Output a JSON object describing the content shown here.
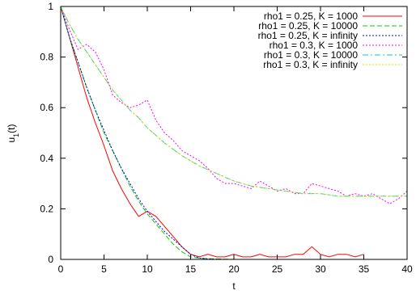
{
  "chart_data": {
    "type": "line",
    "xlabel": "t",
    "ylabel_main": "u",
    "ylabel_sub": "1",
    "ylabel_tail": "(t)",
    "xlim": [
      0,
      40
    ],
    "ylim": [
      0,
      1
    ],
    "x_ticks": [
      0,
      5,
      10,
      15,
      20,
      25,
      30,
      35,
      40
    ],
    "y_ticks": [
      0,
      0.2,
      0.4,
      0.6,
      0.8,
      1
    ],
    "y_tick_labels": [
      "0",
      "0.2",
      "0.4",
      "0.6",
      "0.8",
      "1"
    ],
    "grid": false,
    "legend_position": "top-right",
    "series": [
      {
        "name": "rho1 = 0.25, K = 1000",
        "color": "#ff0000",
        "style": "solid",
        "x": [
          0,
          1,
          2,
          3,
          4,
          5,
          6,
          7,
          8,
          9,
          10,
          11,
          12,
          13,
          14,
          15,
          16,
          17,
          18,
          19,
          20,
          21,
          22,
          23,
          24,
          25,
          26,
          27,
          28,
          29,
          30,
          31,
          32,
          33,
          34,
          35
        ],
        "y": [
          1.0,
          0.88,
          0.76,
          0.64,
          0.54,
          0.45,
          0.35,
          0.28,
          0.22,
          0.17,
          0.19,
          0.17,
          0.13,
          0.09,
          0.05,
          0.02,
          0.01,
          0.02,
          0.01,
          0.01,
          0.02,
          0.01,
          0.01,
          0.02,
          0.01,
          0.01,
          0.01,
          0.02,
          0.02,
          0.05,
          0.02,
          0.01,
          0.02,
          0.02,
          0.01,
          0.02
        ]
      },
      {
        "name": "rho1 = 0.25, K = 10000",
        "color": "#00cc00",
        "style": "dashed",
        "x": [
          0,
          1,
          2,
          3,
          4,
          5,
          6,
          7,
          8,
          9,
          10,
          11,
          12,
          13,
          14,
          15,
          16,
          17,
          18,
          19,
          20,
          22,
          25,
          30,
          35
        ],
        "y": [
          1.0,
          0.88,
          0.78,
          0.68,
          0.59,
          0.5,
          0.43,
          0.36,
          0.29,
          0.23,
          0.18,
          0.14,
          0.1,
          0.06,
          0.03,
          0.01,
          0.005,
          0.003,
          0.002,
          0.001,
          0.0,
          0.0,
          0.0,
          0.0,
          0.0
        ]
      },
      {
        "name": "rho1 = 0.25, K = infinity",
        "color": "#0000dd",
        "style": "dotted",
        "x": [
          0,
          1,
          2,
          3,
          4,
          5,
          6,
          7,
          8,
          9,
          10,
          11,
          12,
          13,
          14,
          15,
          16,
          17,
          18,
          19,
          20,
          22,
          25,
          30,
          35
        ],
        "y": [
          1.0,
          0.88,
          0.78,
          0.68,
          0.59,
          0.51,
          0.43,
          0.36,
          0.3,
          0.24,
          0.19,
          0.15,
          0.11,
          0.08,
          0.05,
          0.02,
          0.005,
          0.002,
          0.001,
          0.0,
          0.0,
          0.0,
          0.0,
          0.0,
          0.0
        ]
      },
      {
        "name": "rho1 = 0.3, K = 1000",
        "color": "#ff00ff",
        "style": "dotted",
        "x": [
          0,
          1,
          2,
          3,
          4,
          5,
          6,
          7,
          8,
          9,
          10,
          11,
          12,
          13,
          14,
          15,
          16,
          17,
          18,
          19,
          20,
          21,
          22,
          23,
          24,
          25,
          26,
          27,
          28,
          29,
          30,
          31,
          32,
          33,
          34,
          35,
          36,
          37,
          38,
          39,
          40
        ],
        "y": [
          1.0,
          0.91,
          0.83,
          0.85,
          0.82,
          0.75,
          0.65,
          0.62,
          0.6,
          0.61,
          0.63,
          0.55,
          0.5,
          0.47,
          0.43,
          0.41,
          0.39,
          0.36,
          0.32,
          0.3,
          0.3,
          0.29,
          0.28,
          0.31,
          0.29,
          0.27,
          0.28,
          0.26,
          0.26,
          0.3,
          0.29,
          0.28,
          0.27,
          0.25,
          0.26,
          0.25,
          0.26,
          0.24,
          0.22,
          0.24,
          0.27
        ]
      },
      {
        "name": "rho1 = 0.3, K = 10000",
        "color": "#00cccc",
        "style": "dashdot",
        "x": [
          0,
          1,
          2,
          3,
          4,
          5,
          6,
          7,
          8,
          9,
          10,
          12,
          14,
          16,
          18,
          20,
          22,
          24,
          26,
          28,
          30,
          32,
          34,
          36,
          38,
          40
        ],
        "y": [
          1.0,
          0.93,
          0.87,
          0.82,
          0.77,
          0.72,
          0.67,
          0.63,
          0.59,
          0.56,
          0.52,
          0.46,
          0.41,
          0.37,
          0.34,
          0.31,
          0.29,
          0.28,
          0.27,
          0.26,
          0.26,
          0.25,
          0.25,
          0.25,
          0.25,
          0.25
        ]
      },
      {
        "name": "rho1 = 0.3, K = infinity",
        "color": "#dddd00",
        "style": "dotted",
        "x": [
          0,
          1,
          2,
          3,
          4,
          5,
          6,
          7,
          8,
          9,
          10,
          12,
          14,
          16,
          18,
          20,
          22,
          24,
          26,
          28,
          30,
          32,
          34,
          36,
          38,
          40
        ],
        "y": [
          1.0,
          0.93,
          0.87,
          0.82,
          0.77,
          0.72,
          0.67,
          0.63,
          0.59,
          0.56,
          0.52,
          0.46,
          0.41,
          0.37,
          0.34,
          0.31,
          0.29,
          0.28,
          0.27,
          0.26,
          0.26,
          0.25,
          0.25,
          0.25,
          0.25,
          0.25
        ]
      }
    ]
  }
}
